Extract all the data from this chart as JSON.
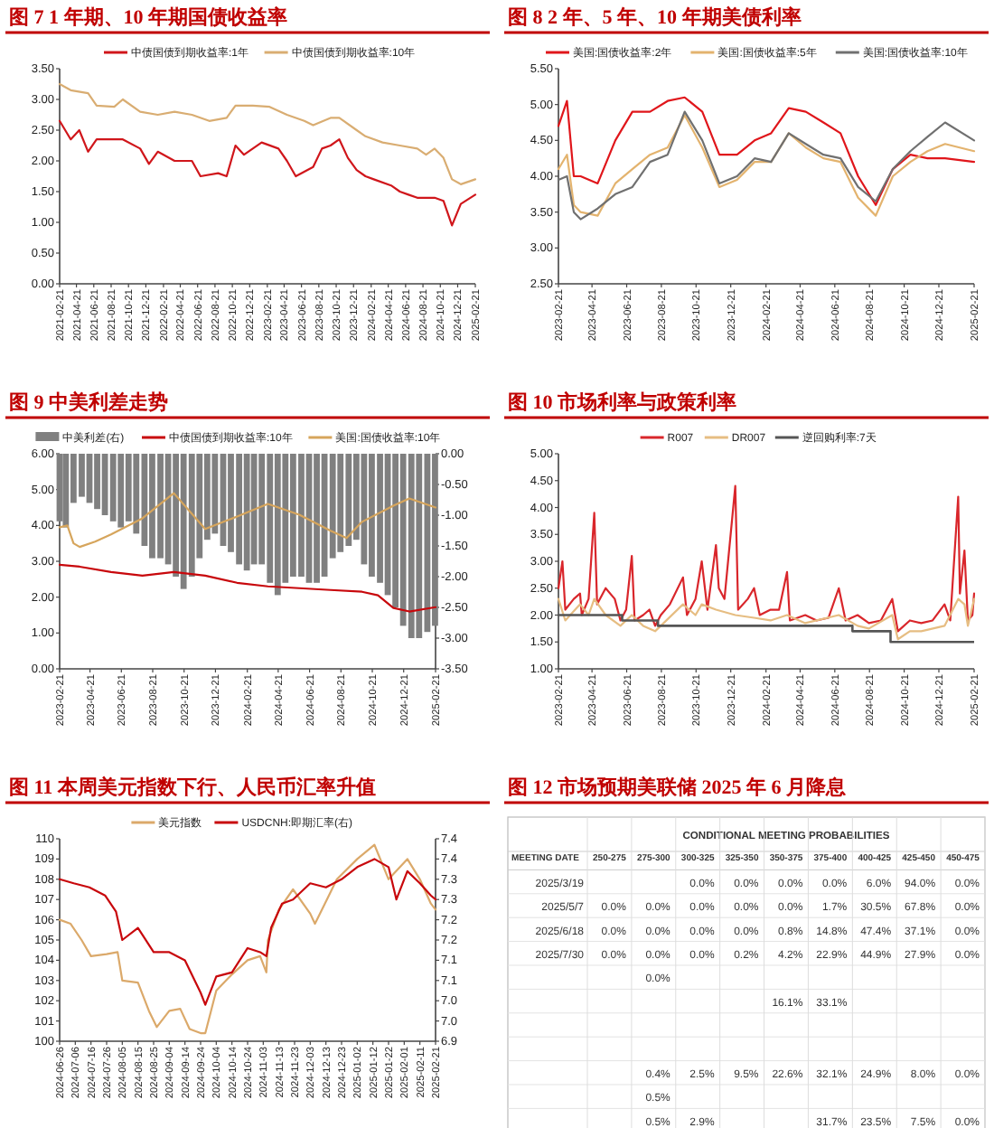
{
  "chart_data": [
    {
      "type": "line",
      "title": "图 7 1 年期、10 年期国债收益率",
      "legend": "top",
      "xlim": [
        "2021-02-21",
        "2025-02-21"
      ],
      "xticks": [
        "2021-02-21",
        "2021-04-21",
        "2021-06-21",
        "2021-08-21",
        "2021-10-21",
        "2021-12-21",
        "2022-02-21",
        "2022-04-21",
        "2022-06-21",
        "2022-08-21",
        "2022-10-21",
        "2022-12-21",
        "2023-02-21",
        "2023-04-21",
        "2023-06-21",
        "2023-08-21",
        "2023-10-21",
        "2023-12-21",
        "2024-02-21",
        "2024-04-21",
        "2024-06-21",
        "2024-08-21",
        "2024-10-21",
        "2024-12-21",
        "2025-02-21"
      ],
      "ylim": [
        0,
        3.5
      ],
      "yticks": [
        {
          "value": 0,
          "label": "0.00"
        },
        {
          "value": 0.5,
          "label": "0.50"
        },
        {
          "value": 1,
          "label": "1.00"
        },
        {
          "value": 1.5,
          "label": "1.50"
        },
        {
          "value": 2,
          "label": "2.00"
        },
        {
          "value": 2.5,
          "label": "2.50"
        },
        {
          "value": 3,
          "label": "3.00"
        },
        {
          "value": 3.5,
          "label": "3.50"
        }
      ],
      "series": [
        {
          "name": "中债国债到期收益率:1年",
          "color": "#d0161b",
          "x": [
            "2021-02-21",
            "2021-04",
            "2021-05",
            "2021-06",
            "2021-07",
            "2021-09",
            "2021-10",
            "2021-12",
            "2022-01",
            "2022-02",
            "2022-04",
            "2022-06",
            "2022-07",
            "2022-09",
            "2022-10",
            "2022-11",
            "2022-12",
            "2023-02",
            "2023-04",
            "2023-05",
            "2023-06",
            "2023-08",
            "2023-09",
            "2023-10",
            "2023-11",
            "2023-12",
            "2024-01",
            "2024-02",
            "2024-03",
            "2024-05",
            "2024-06",
            "2024-07",
            "2024-08",
            "2024-09",
            "2024-10",
            "2024-11",
            "2024-12",
            "2025-01",
            "2025-02-21"
          ],
          "values": [
            2.65,
            2.35,
            2.5,
            2.15,
            2.35,
            2.35,
            2.35,
            2.2,
            1.95,
            2.15,
            2.0,
            2.0,
            1.75,
            1.8,
            1.75,
            2.25,
            2.1,
            2.3,
            2.2,
            2.0,
            1.75,
            1.9,
            2.2,
            2.25,
            2.35,
            2.05,
            1.85,
            1.75,
            1.7,
            1.6,
            1.5,
            1.45,
            1.4,
            1.4,
            1.4,
            1.35,
            0.95,
            1.3,
            1.45
          ]
        },
        {
          "name": "中债国债到期收益率:10年",
          "color": "#d9ad72",
          "x": [
            "2021-02-21",
            "2021-04",
            "2021-06",
            "2021-07",
            "2021-09",
            "2021-10",
            "2021-12",
            "2022-02",
            "2022-04",
            "2022-06",
            "2022-08",
            "2022-10",
            "2022-11",
            "2023-01",
            "2023-03",
            "2023-05",
            "2023-07",
            "2023-08",
            "2023-10",
            "2023-11",
            "2024-01",
            "2024-02",
            "2024-04",
            "2024-06",
            "2024-08",
            "2024-09",
            "2024-10",
            "2024-11",
            "2024-12",
            "2025-01",
            "2025-02-21"
          ],
          "values": [
            3.25,
            3.15,
            3.1,
            2.9,
            2.88,
            3.0,
            2.8,
            2.75,
            2.8,
            2.75,
            2.65,
            2.7,
            2.9,
            2.9,
            2.88,
            2.75,
            2.65,
            2.58,
            2.7,
            2.7,
            2.5,
            2.4,
            2.3,
            2.25,
            2.2,
            2.1,
            2.2,
            2.05,
            1.7,
            1.62,
            1.7
          ]
        }
      ]
    },
    {
      "type": "line",
      "title": "图 8 2 年、5 年、10 年期美债利率",
      "legend": "top",
      "xlim": [
        "2023-02-21",
        "2025-02-21"
      ],
      "xticks": [
        "2023-02-21",
        "2023-04-21",
        "2023-06-21",
        "2023-08-21",
        "2023-10-21",
        "2023-12-21",
        "2024-02-21",
        "2024-04-21",
        "2024-06-21",
        "2024-08-21",
        "2024-10-21",
        "2024-12-21",
        "2025-02-21"
      ],
      "ylim": [
        2.5,
        5.5
      ],
      "yticks": [
        {
          "value": 2.5,
          "label": "2.50"
        },
        {
          "value": 3,
          "label": "3.00"
        },
        {
          "value": 3.5,
          "label": "3.50"
        },
        {
          "value": 4,
          "label": "4.00"
        },
        {
          "value": 4.5,
          "label": "4.50"
        },
        {
          "value": 5,
          "label": "5.00"
        },
        {
          "value": 5.5,
          "label": "5.50"
        }
      ],
      "series": [
        {
          "name": "美国:国债收益率:2年",
          "color": "#e0161b",
          "x": [
            "2023-02-21",
            "2023-03-08",
            "2023-03-20",
            "2023-04",
            "2023-05",
            "2023-06",
            "2023-07",
            "2023-08",
            "2023-09",
            "2023-10",
            "2023-11",
            "2023-12",
            "2024-01",
            "2024-02",
            "2024-03",
            "2024-04",
            "2024-05",
            "2024-06",
            "2024-07",
            "2024-08",
            "2024-09",
            "2024-10",
            "2024-11",
            "2024-12",
            "2025-01",
            "2025-02-21"
          ],
          "values": [
            4.7,
            5.05,
            4.0,
            4.0,
            3.9,
            4.5,
            4.9,
            4.9,
            5.05,
            5.1,
            4.9,
            4.3,
            4.3,
            4.5,
            4.6,
            4.95,
            4.9,
            4.75,
            4.6,
            4.0,
            3.6,
            4.1,
            4.3,
            4.25,
            4.25,
            4.2
          ]
        },
        {
          "name": "美国:国债收益率:5年",
          "color": "#e3b36e",
          "x": [
            "2023-02-21",
            "2023-03-08",
            "2023-03-20",
            "2023-04",
            "2023-05",
            "2023-06",
            "2023-07",
            "2023-08",
            "2023-09",
            "2023-10",
            "2023-11",
            "2023-12",
            "2024-01",
            "2024-02",
            "2024-03",
            "2024-04",
            "2024-05",
            "2024-06",
            "2024-07",
            "2024-08",
            "2024-09",
            "2024-10",
            "2024-11",
            "2024-12",
            "2025-01",
            "2025-02-21"
          ],
          "values": [
            4.1,
            4.3,
            3.6,
            3.5,
            3.45,
            3.9,
            4.1,
            4.3,
            4.4,
            4.85,
            4.4,
            3.85,
            3.95,
            4.2,
            4.2,
            4.6,
            4.4,
            4.25,
            4.2,
            3.7,
            3.45,
            4.0,
            4.2,
            4.35,
            4.45,
            4.35
          ]
        },
        {
          "name": "美国:国债收益率:10年",
          "color": "#707070",
          "x": [
            "2023-02-21",
            "2023-03-08",
            "2023-03-20",
            "2023-04",
            "2023-05",
            "2023-06",
            "2023-07",
            "2023-08",
            "2023-09",
            "2023-10",
            "2023-11",
            "2023-12",
            "2024-01",
            "2024-02",
            "2024-03",
            "2024-04",
            "2024-05",
            "2024-06",
            "2024-07",
            "2024-08",
            "2024-09",
            "2024-10",
            "2024-11",
            "2024-12",
            "2025-01",
            "2025-02-21"
          ],
          "values": [
            3.95,
            4.0,
            3.5,
            3.4,
            3.55,
            3.75,
            3.85,
            4.2,
            4.3,
            4.9,
            4.5,
            3.9,
            4.0,
            4.25,
            4.2,
            4.6,
            4.45,
            4.3,
            4.25,
            3.85,
            3.65,
            4.1,
            4.35,
            4.55,
            4.75,
            4.5
          ]
        }
      ]
    },
    {
      "type": "line",
      "title": "图 9 中美利差走势",
      "legend": "top",
      "xlim": [
        "2023-02-21",
        "2025-02-21"
      ],
      "xticks": [
        "2023-02-21",
        "2023-04-21",
        "2023-06-21",
        "2023-08-21",
        "2023-10-21",
        "2023-12-21",
        "2024-02-21",
        "2024-04-21",
        "2024-06-21",
        "2024-08-21",
        "2024-10-21",
        "2024-12-21",
        "2025-02-21"
      ],
      "ylim": [
        0,
        6
      ],
      "yticks": [
        {
          "value": 0,
          "label": "0.00"
        },
        {
          "value": 1,
          "label": "1.00"
        },
        {
          "value": 2,
          "label": "2.00"
        },
        {
          "value": 3,
          "label": "3.00"
        },
        {
          "value": 4,
          "label": "4.00"
        },
        {
          "value": 5,
          "label": "5.00"
        },
        {
          "value": 6,
          "label": "6.00"
        }
      ],
      "y2lim": [
        -3.5,
        0
      ],
      "y2ticks": [
        {
          "value": -3.5,
          "label": "-3.50"
        },
        {
          "value": -3,
          "label": "-3.00"
        },
        {
          "value": -2.5,
          "label": "-2.50"
        },
        {
          "value": -2,
          "label": "-2.00"
        },
        {
          "value": -1.5,
          "label": "-1.50"
        },
        {
          "value": -1,
          "label": "-1.00"
        },
        {
          "value": -0.5,
          "label": "-0.50"
        },
        {
          "value": 0,
          "label": "0.00"
        }
      ],
      "series": [
        {
          "name": "中美利差(右)",
          "type": "bar",
          "axis": "y2",
          "color": "#808080",
          "x": [
            "2023-02-21",
            "2023-03-05",
            "2023-03-20",
            "2023-04-05",
            "2023-04-20",
            "2023-05-05",
            "2023-05-20",
            "2023-06-05",
            "2023-06-20",
            "2023-07-05",
            "2023-07-20",
            "2023-08-05",
            "2023-08-20",
            "2023-09-05",
            "2023-09-20",
            "2023-10-05",
            "2023-10-20",
            "2023-11-05",
            "2023-11-20",
            "2023-12-05",
            "2023-12-20",
            "2024-01-05",
            "2024-01-20",
            "2024-02-05",
            "2024-02-20",
            "2024-03-05",
            "2024-03-20",
            "2024-04-05",
            "2024-04-20",
            "2024-05-05",
            "2024-05-20",
            "2024-06-05",
            "2024-06-20",
            "2024-07-05",
            "2024-07-20",
            "2024-08-05",
            "2024-08-20",
            "2024-09-05",
            "2024-09-20",
            "2024-10-05",
            "2024-10-20",
            "2024-11-05",
            "2024-11-20",
            "2024-12-05",
            "2024-12-20",
            "2025-01-05",
            "2025-01-20",
            "2025-02-05",
            "2025-02-20"
          ],
          "values": [
            -1.1,
            -1.2,
            -0.8,
            -0.7,
            -0.8,
            -0.9,
            -1.0,
            -1.1,
            -1.2,
            -1.1,
            -1.3,
            -1.5,
            -1.7,
            -1.7,
            -1.8,
            -2.0,
            -2.2,
            -2.0,
            -1.7,
            -1.4,
            -1.3,
            -1.5,
            -1.6,
            -1.8,
            -1.9,
            -1.8,
            -1.8,
            -2.1,
            -2.3,
            -2.1,
            -2.0,
            -2.0,
            -2.1,
            -2.1,
            -2.0,
            -1.7,
            -1.6,
            -1.5,
            -1.4,
            -1.8,
            -2.0,
            -2.1,
            -2.3,
            -2.5,
            -2.8,
            -3.0,
            -3.0,
            -2.9,
            -2.8
          ]
        },
        {
          "name": "中债国债到期收益率:10年",
          "color": "#c8080c",
          "x": [
            "2023-02-21",
            "2023-04",
            "2023-06",
            "2023-08",
            "2023-10",
            "2023-12",
            "2024-02",
            "2024-04",
            "2024-06",
            "2024-08",
            "2024-10",
            "2024-11",
            "2024-12",
            "2025-01",
            "2025-02-21"
          ],
          "values": [
            2.9,
            2.85,
            2.7,
            2.6,
            2.7,
            2.6,
            2.4,
            2.3,
            2.25,
            2.2,
            2.15,
            2.05,
            1.7,
            1.6,
            1.72
          ]
        },
        {
          "name": "美国:国债收益率:10年",
          "color": "#d6a55c",
          "x": [
            "2023-02-21",
            "2023-03-08",
            "2023-03-20",
            "2023-04",
            "2023-05",
            "2023-06",
            "2023-08",
            "2023-10",
            "2023-12",
            "2024-02",
            "2024-04",
            "2024-06",
            "2024-08",
            "2024-09",
            "2024-10",
            "2024-12",
            "2025-01",
            "2025-02-21"
          ],
          "values": [
            3.95,
            4.0,
            3.5,
            3.4,
            3.55,
            3.75,
            4.2,
            4.9,
            3.9,
            4.25,
            4.6,
            4.3,
            3.85,
            3.65,
            4.1,
            4.55,
            4.75,
            4.5
          ]
        }
      ]
    },
    {
      "type": "line",
      "title": "图 10 市场利率与政策利率",
      "legend": "top",
      "xlim": [
        "2023-02-21",
        "2025-02-21"
      ],
      "xticks": [
        "2023-02-21",
        "2023-04-21",
        "2023-06-21",
        "2023-08-21",
        "2023-10-21",
        "2023-12-21",
        "2024-02-21",
        "2024-04-21",
        "2024-06-21",
        "2024-08-21",
        "2024-10-21",
        "2024-12-21",
        "2025-02-21"
      ],
      "ylim": [
        1,
        5
      ],
      "yticks": [
        {
          "value": 1,
          "label": "1.00"
        },
        {
          "value": 1.5,
          "label": "1.50"
        },
        {
          "value": 2,
          "label": "2.00"
        },
        {
          "value": 2.5,
          "label": "2.50"
        },
        {
          "value": 3,
          "label": "3.00"
        },
        {
          "value": 3.5,
          "label": "3.50"
        },
        {
          "value": 4,
          "label": "4.00"
        },
        {
          "value": 4.5,
          "label": "4.50"
        },
        {
          "value": 5,
          "label": "5.00"
        }
      ],
      "series": [
        {
          "name": "R007",
          "color": "#d9262b",
          "x": [
            "2023-02-21",
            "2023-02-28",
            "2023-03-05",
            "2023-03-20",
            "2023-03-31",
            "2023-04-03",
            "2023-04-15",
            "2023-04-25",
            "2023-04-30",
            "2023-05-15",
            "2023-05-31",
            "2023-06-10",
            "2023-06-20",
            "2023-06-30",
            "2023-07-05",
            "2023-07-20",
            "2023-07-31",
            "2023-08-10",
            "2023-08-20",
            "2023-09-05",
            "2023-09-28",
            "2023-10-05",
            "2023-10-20",
            "2023-10-31",
            "2023-11-10",
            "2023-11-25",
            "2023-11-30",
            "2023-12-10",
            "2023-12-29",
            "2024-01-03",
            "2024-01-20",
            "2024-01-31",
            "2024-02-10",
            "2024-02-29",
            "2024-03-15",
            "2024-03-29",
            "2024-04-03",
            "2024-04-30",
            "2024-05-20",
            "2024-06-10",
            "2024-06-28",
            "2024-07-10",
            "2024-07-31",
            "2024-08-20",
            "2024-09-10",
            "2024-09-30",
            "2024-10-10",
            "2024-10-31",
            "2024-11-20",
            "2024-12-10",
            "2024-12-31",
            "2025-01-10",
            "2025-01-24",
            "2025-01-27",
            "2025-02-04",
            "2025-02-10",
            "2025-02-18",
            "2025-02-21"
          ],
          "values": [
            2.5,
            3.0,
            2.1,
            2.3,
            2.4,
            2.0,
            2.3,
            3.9,
            2.2,
            2.5,
            2.3,
            1.9,
            2.1,
            3.1,
            1.9,
            2.0,
            2.1,
            1.8,
            2.0,
            2.2,
            2.7,
            2.0,
            2.3,
            3.0,
            2.1,
            3.3,
            2.5,
            2.3,
            4.4,
            2.1,
            2.3,
            2.5,
            2.0,
            2.1,
            2.1,
            2.8,
            1.9,
            2.0,
            1.9,
            1.95,
            2.5,
            1.9,
            2.0,
            1.85,
            1.9,
            2.3,
            1.7,
            1.9,
            1.85,
            1.9,
            2.2,
            1.9,
            4.2,
            2.4,
            3.2,
            1.9,
            2.0,
            2.4
          ]
        },
        {
          "name": "DR007",
          "color": "#e6bd82",
          "x": [
            "2023-02-21",
            "2023-03-05",
            "2023-03-31",
            "2023-04-15",
            "2023-04-25",
            "2023-05-15",
            "2023-06-10",
            "2023-06-30",
            "2023-07-20",
            "2023-08-10",
            "2023-08-20",
            "2023-09-28",
            "2023-10-20",
            "2023-10-31",
            "2023-11-25",
            "2023-12-29",
            "2024-01-31",
            "2024-02-29",
            "2024-03-29",
            "2024-04-30",
            "2024-06-28",
            "2024-07-31",
            "2024-08-20",
            "2024-09-30",
            "2024-10-10",
            "2024-10-31",
            "2024-11-20",
            "2024-12-31",
            "2025-01-24",
            "2025-02-04",
            "2025-02-10",
            "2025-02-21"
          ],
          "values": [
            2.3,
            1.9,
            2.2,
            2.0,
            2.3,
            2.0,
            1.8,
            2.0,
            1.8,
            1.7,
            1.8,
            2.2,
            2.0,
            2.2,
            2.1,
            2.0,
            1.95,
            1.9,
            2.0,
            1.85,
            2.0,
            1.8,
            1.75,
            2.0,
            1.55,
            1.7,
            1.7,
            1.8,
            2.3,
            2.2,
            1.8,
            2.3
          ]
        },
        {
          "name": "逆回购利率:7天",
          "type": "step",
          "color": "#555555",
          "x": [
            "2023-02-21",
            "2023-06-13",
            "2023-08-15",
            "2024-07-22",
            "2024-09-27",
            "2025-02-21"
          ],
          "values": [
            2.0,
            1.9,
            1.8,
            1.7,
            1.5,
            1.5
          ]
        }
      ]
    },
    {
      "type": "line",
      "title": "图 11 本周美元指数下行、人民币汇率升值",
      "legend": "top",
      "xlim": [
        "2024-06-26",
        "2025-02-21"
      ],
      "xticks": [
        "2024-06-26",
        "2024-07-06",
        "2024-07-16",
        "2024-07-26",
        "2024-08-05",
        "2024-08-15",
        "2024-08-25",
        "2024-09-04",
        "2024-09-14",
        "2024-09-24",
        "2024-10-04",
        "2024-10-14",
        "2024-10-24",
        "2024-11-03",
        "2024-11-13",
        "2024-11-23",
        "2024-12-03",
        "2024-12-13",
        "2024-12-23",
        "2025-01-02",
        "2025-01-12",
        "2025-01-22",
        "2025-02-01",
        "2025-02-11",
        "2025-02-21"
      ],
      "ylim": [
        100,
        110
      ],
      "yticks": [
        100,
        101,
        102,
        103,
        104,
        105,
        106,
        107,
        108,
        109,
        110
      ],
      "y2lim": [
        6.9,
        7.4
      ],
      "y2ticks": [
        {
          "value": 6.9,
          "label": "6.9"
        },
        {
          "value": 6.95,
          "label": "7.0"
        },
        {
          "value": 7.0,
          "label": "7.0"
        },
        {
          "value": 7.05,
          "label": "7.1"
        },
        {
          "value": 7.1,
          "label": "7.1"
        },
        {
          "value": 7.15,
          "label": "7.2"
        },
        {
          "value": 7.2,
          "label": "7.2"
        },
        {
          "value": 7.25,
          "label": "7.3"
        },
        {
          "value": 7.3,
          "label": "7.3"
        },
        {
          "value": 7.35,
          "label": "7.4"
        },
        {
          "value": 7.4,
          "label": "7.4"
        }
      ],
      "series": [
        {
          "name": "美元指数",
          "color": "#dba96a",
          "x": [
            "2024-06-26",
            "2024-07-03",
            "2024-07-10",
            "2024-07-16",
            "2024-07-26",
            "2024-08-02",
            "2024-08-05",
            "2024-08-15",
            "2024-08-22",
            "2024-08-27",
            "2024-09-04",
            "2024-09-11",
            "2024-09-17",
            "2024-09-24",
            "2024-09-27",
            "2024-10-04",
            "2024-10-14",
            "2024-10-24",
            "2024-11-01",
            "2024-11-05",
            "2024-11-06",
            "2024-11-13",
            "2024-11-22",
            "2024-12-03",
            "2024-12-06",
            "2024-12-13",
            "2024-12-20",
            "2025-01-02",
            "2025-01-13",
            "2025-01-22",
            "2025-02-03",
            "2025-02-11",
            "2025-02-18",
            "2025-02-21"
          ],
          "values": [
            106.0,
            105.8,
            105.0,
            104.2,
            104.3,
            104.4,
            103.0,
            102.9,
            101.5,
            100.7,
            101.5,
            101.6,
            100.6,
            100.4,
            100.4,
            102.5,
            103.3,
            104.0,
            104.2,
            103.4,
            105.0,
            106.5,
            107.5,
            106.3,
            105.8,
            106.9,
            108.0,
            109.0,
            109.7,
            108.0,
            109.0,
            108.0,
            106.8,
            106.5
          ]
        },
        {
          "name": "USDCNH:即期汇率(右)",
          "axis": "y2",
          "color": "#c8080c",
          "x": [
            "2024-06-26",
            "2024-07-05",
            "2024-07-15",
            "2024-07-25",
            "2024-08-01",
            "2024-08-05",
            "2024-08-15",
            "2024-08-25",
            "2024-09-04",
            "2024-09-14",
            "2024-09-24",
            "2024-09-27",
            "2024-10-04",
            "2024-10-14",
            "2024-10-24",
            "2024-11-01",
            "2024-11-05",
            "2024-11-08",
            "2024-11-15",
            "2024-11-22",
            "2024-12-03",
            "2024-12-13",
            "2024-12-23",
            "2025-01-02",
            "2025-01-13",
            "2025-01-22",
            "2025-01-27",
            "2025-02-03",
            "2025-02-11",
            "2025-02-18",
            "2025-02-21"
          ],
          "values": [
            7.3,
            7.29,
            7.28,
            7.26,
            7.22,
            7.15,
            7.18,
            7.12,
            7.12,
            7.1,
            7.02,
            6.99,
            7.06,
            7.07,
            7.13,
            7.12,
            7.11,
            7.18,
            7.24,
            7.25,
            7.29,
            7.28,
            7.3,
            7.33,
            7.35,
            7.33,
            7.25,
            7.32,
            7.29,
            7.26,
            7.25
          ]
        }
      ]
    },
    {
      "type": "other",
      "title": "图 12 市场预期美联储 2025 年 6 月降息",
      "subtitle": "CONDITIONAL MEETING PROBABILITIES",
      "categories": [
        "MEETING DATE",
        "250-275",
        "275-300",
        "300-325",
        "325-350",
        "350-375",
        "375-400",
        "400-425",
        "425-450",
        "450-475"
      ],
      "y_categories": [
        "2025/3/19",
        "2025/5/7",
        "2025/6/18",
        "2025/7/30",
        null,
        null,
        null,
        null,
        null,
        null,
        null
      ],
      "cell_labels": [
        [
          null,
          null,
          "0.0%",
          "0.0%",
          "0.0%",
          "0.0%",
          "6.0%",
          "94.0%",
          "0.0%"
        ],
        [
          "0.0%",
          "0.0%",
          "0.0%",
          "0.0%",
          "0.0%",
          "1.7%",
          "30.5%",
          "67.8%",
          "0.0%"
        ],
        [
          "0.0%",
          "0.0%",
          "0.0%",
          "0.0%",
          "0.8%",
          "14.8%",
          "47.4%",
          "37.1%",
          "0.0%"
        ],
        [
          "0.0%",
          "0.0%",
          "0.0%",
          "0.2%",
          "4.2%",
          "22.9%",
          "44.9%",
          "27.9%",
          "0.0%"
        ],
        [
          null,
          "0.0%",
          null,
          null,
          null,
          null,
          null,
          null,
          null
        ],
        [
          null,
          null,
          null,
          null,
          "16.1%",
          "33.1%",
          null,
          null,
          null
        ],
        [
          null,
          null,
          null,
          null,
          null,
          null,
          null,
          null,
          null
        ],
        [
          null,
          null,
          null,
          null,
          null,
          null,
          null,
          null,
          null
        ],
        [
          null,
          "0.4%",
          "2.5%",
          "9.5%",
          "22.6%",
          "32.1%",
          "24.9%",
          "8.0%",
          "0.0%"
        ],
        [
          null,
          "0.5%",
          null,
          null,
          null,
          null,
          null,
          null,
          null
        ],
        [
          null,
          "0.5%",
          "2.9%",
          null,
          null,
          "31.7%",
          "23.5%",
          "7.5%",
          "0.0%"
        ]
      ]
    }
  ]
}
